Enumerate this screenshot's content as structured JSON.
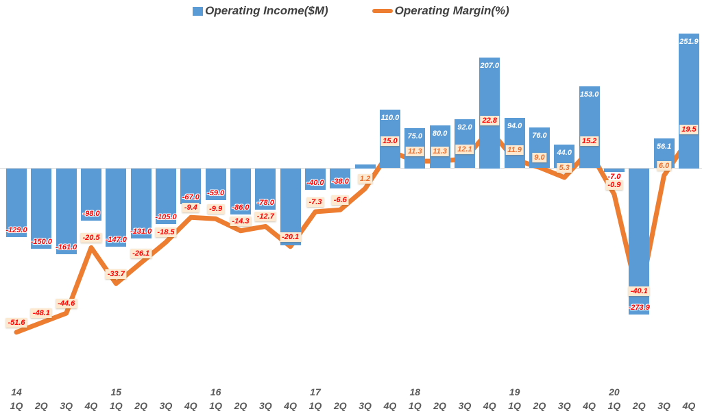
{
  "legend": {
    "income_label": "Operating Income($M)",
    "margin_label": "Operating Margin(%)"
  },
  "colors": {
    "bar": "#5B9BD5",
    "line": "#ED7D31",
    "bar_label_negative": "#FF0000",
    "bar_label_positive": "#FFFFFF",
    "margin_label_bg": "#FCE9D0",
    "margin_label_orange": "#E97132",
    "margin_label_red": "#FF0000",
    "axis_text": "#595959",
    "baseline": "#D9D9D9"
  },
  "chart_data": {
    "type": "combo-bar-line",
    "quarters": [
      "1Q",
      "2Q",
      "3Q",
      "4Q",
      "1Q",
      "2Q",
      "3Q",
      "4Q",
      "1Q",
      "2Q",
      "3Q",
      "4Q",
      "1Q",
      "2Q",
      "3Q",
      "4Q",
      "1Q",
      "2Q",
      "3Q",
      "4Q",
      "1Q",
      "2Q",
      "3Q",
      "4Q",
      "1Q",
      "2Q",
      "3Q",
      "4Q"
    ],
    "year_labels": [
      "14",
      "",
      "",
      "",
      "15",
      "",
      "",
      "",
      "16",
      "",
      "",
      "",
      "17",
      "",
      "",
      "",
      "18",
      "",
      "",
      "",
      "19",
      "",
      "",
      "",
      "20",
      "",
      "",
      ""
    ],
    "series": [
      {
        "name": "Operating Income($M)",
        "type": "bar",
        "values": [
          -129.0,
          -150.0,
          -161.0,
          -98.0,
          -147.0,
          -131.0,
          -105.0,
          -67.0,
          -59.0,
          -86.0,
          -78.0,
          -144.0,
          -40.0,
          -38.0,
          7.0,
          110.0,
          75.0,
          80.0,
          92.0,
          207.0,
          94.0,
          76.0,
          44.0,
          153.0,
          -7.0,
          -273.9,
          56.1,
          251.9
        ],
        "labels": [
          "-129.0",
          "-150.0",
          "-161.0",
          "-98.0",
          "-147.0",
          "-131.0",
          "-105.0",
          "-67.0",
          "-59.0",
          "-86.0",
          "-78.0",
          "",
          "-40.0",
          "-38.0",
          "",
          "110.0",
          "75.0",
          "80.0",
          "92.0",
          "207.0",
          "94.0",
          "76.0",
          "44.0",
          "153.0",
          "-7.0",
          "-273.9",
          "56.1",
          "251.9"
        ]
      },
      {
        "name": "Operating Margin(%)",
        "type": "line",
        "values": [
          -51.6,
          -48.1,
          -44.6,
          -20.5,
          -33.7,
          -26.1,
          -18.5,
          -9.4,
          -9.9,
          -14.3,
          -12.7,
          -20.1,
          -7.3,
          -6.6,
          1.2,
          15.0,
          11.3,
          11.3,
          12.1,
          22.8,
          11.9,
          9.0,
          5.3,
          15.2,
          -0.9,
          -40.1,
          6.0,
          19.5
        ],
        "labels": [
          "-51.6",
          "-48.1",
          "-44.6",
          "-20.5",
          "-33.7",
          "-26.1",
          "-18.5",
          "-9.4",
          "-9.9",
          "-14.3",
          "-12.7",
          "-20.1",
          "-7.3",
          "-6.6",
          "1.2",
          "15.0",
          "11.3",
          "11.3",
          "12.1",
          "22.8",
          "11.9",
          "9.0",
          "5.3",
          "15.2",
          "-0.9",
          "-40.1",
          "6.0",
          "19.5"
        ],
        "label_colors": [
          "red",
          "red",
          "red",
          "red",
          "red",
          "red",
          "red",
          "red",
          "red",
          "red",
          "red",
          "red",
          "red",
          "red",
          "orange",
          "red",
          "orange",
          "orange",
          "orange",
          "red",
          "orange",
          "orange",
          "orange",
          "red",
          "red",
          "red",
          "orange",
          "red"
        ]
      }
    ],
    "title": "",
    "xlabel": "",
    "ylabel": "",
    "gridlines": false,
    "legend_position": "top-center"
  }
}
